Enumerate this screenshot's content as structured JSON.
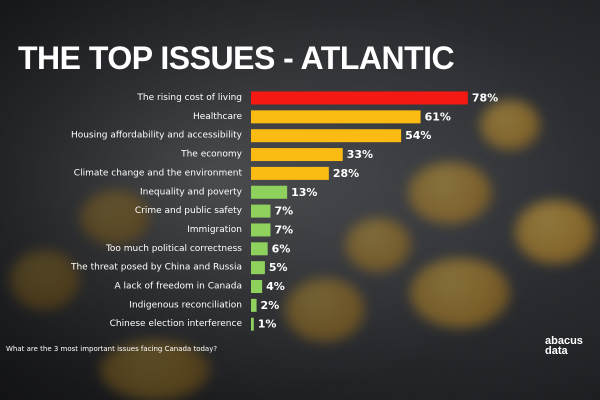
{
  "title": "THE TOP ISSUES - ATLANTIC",
  "footnote": "What are the 3 most important issues facing Canada today?",
  "logo": {
    "line1": "abacus",
    "line2": "data"
  },
  "colors": {
    "red": "#f41a13",
    "amber": "#fbbb13",
    "green": "#8fd15d",
    "text": "#ffffff"
  },
  "chart_data": {
    "type": "bar",
    "orientation": "horizontal",
    "title": "THE TOP ISSUES - ATLANTIC",
    "xlabel": "",
    "ylabel": "",
    "xlim": [
      0,
      100
    ],
    "grid": false,
    "legend": "none",
    "value_suffix": "%",
    "categories": [
      "The rising cost of living",
      "Healthcare",
      "Housing affordability and accessibility",
      "The economy",
      "Climate change and the environment",
      "Inequality and poverty",
      "Crime and public safety",
      "Immigration",
      "Too much political correctness",
      "The threat posed by China and Russia",
      "A lack of freedom in Canada",
      "Indigenous reconciliation",
      "Chinese election interference"
    ],
    "values": [
      78,
      61,
      54,
      33,
      28,
      13,
      7,
      7,
      6,
      5,
      4,
      2,
      1
    ],
    "bar_colors": [
      "red",
      "amber",
      "amber",
      "amber",
      "amber",
      "green",
      "green",
      "green",
      "green",
      "green",
      "green",
      "green",
      "green"
    ]
  }
}
